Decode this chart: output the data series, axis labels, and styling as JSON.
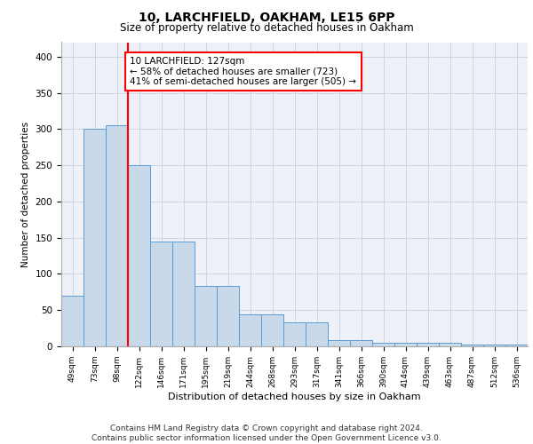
{
  "title1": "10, LARCHFIELD, OAKHAM, LE15 6PP",
  "title2": "Size of property relative to detached houses in Oakham",
  "xlabel": "Distribution of detached houses by size in Oakham",
  "ylabel": "Number of detached properties",
  "categories": [
    "49sqm",
    "73sqm",
    "98sqm",
    "122sqm",
    "146sqm",
    "171sqm",
    "195sqm",
    "219sqm",
    "244sqm",
    "268sqm",
    "293sqm",
    "317sqm",
    "341sqm",
    "366sqm",
    "390sqm",
    "414sqm",
    "439sqm",
    "463sqm",
    "487sqm",
    "512sqm",
    "536sqm"
  ],
  "bar_values": [
    70,
    300,
    305,
    250,
    145,
    145,
    83,
    83,
    44,
    44,
    33,
    33,
    8,
    8,
    5,
    5,
    5,
    5,
    2,
    2,
    3
  ],
  "bar_color": "#c8d9ea",
  "bar_edge_color": "#5b9bd5",
  "red_line_x": 3,
  "annotation_text": "10 LARCHFIELD: 127sqm\n← 58% of detached houses are smaller (723)\n41% of semi-detached houses are larger (505) →",
  "footer": "Contains HM Land Registry data © Crown copyright and database right 2024.\nContains public sector information licensed under the Open Government Licence v3.0.",
  "bg_color": "#eef2f8",
  "grid_color": "#ccd5e5",
  "ylim": [
    0,
    420
  ],
  "yticks": [
    0,
    50,
    100,
    150,
    200,
    250,
    300,
    350,
    400
  ]
}
